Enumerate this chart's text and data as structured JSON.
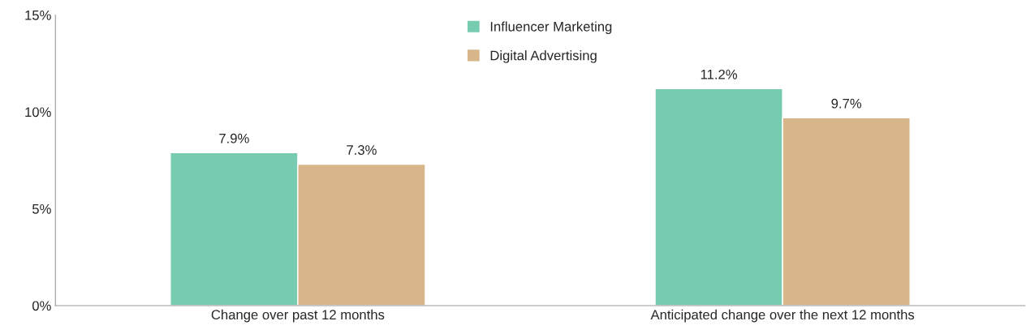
{
  "chart_data": {
    "type": "bar",
    "categories": [
      "Change over past 12 months",
      "Anticipated change over the next 12 months"
    ],
    "series": [
      {
        "name": "Influencer Marketing",
        "color": "#77cbb0",
        "values": [
          7.9,
          11.2
        ],
        "value_labels": [
          "7.9%",
          "11.2%"
        ]
      },
      {
        "name": "Digital Advertising",
        "color": "#d7b68a",
        "values": [
          7.3,
          9.7
        ],
        "value_labels": [
          "7.3%",
          "9.7%"
        ]
      }
    ],
    "ylim": [
      0,
      15
    ],
    "yticks": [
      {
        "value": 0,
        "label": "0%"
      },
      {
        "value": 5,
        "label": "5%"
      },
      {
        "value": 10,
        "label": "10%"
      },
      {
        "value": 15,
        "label": "15%"
      }
    ],
    "grid": false,
    "legend": "top"
  }
}
